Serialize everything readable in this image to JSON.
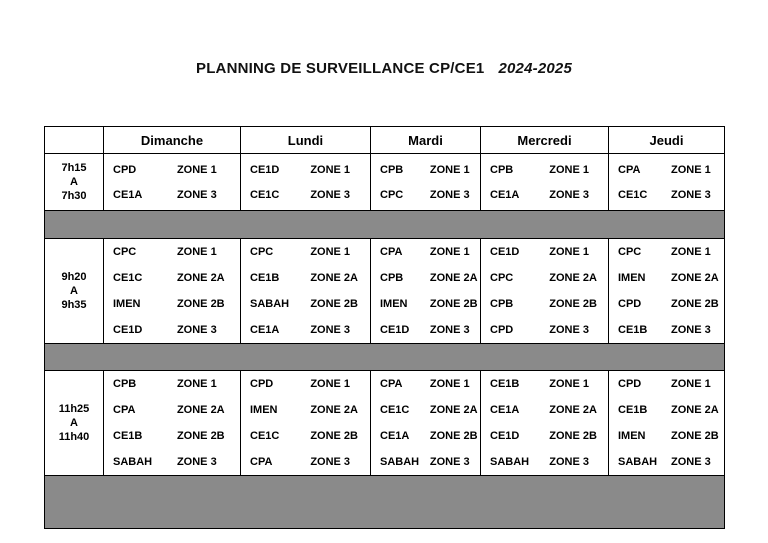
{
  "page": {
    "title": "PLANNING DE SURVEILLANCE CP/CE1",
    "year": "2024-2025"
  },
  "table": {
    "separator_color": "#8a8a8a",
    "days": [
      "Dimanche",
      "Lundi",
      "Mardi",
      "Mercredi",
      "Jeudi"
    ],
    "slots": [
      {
        "time": [
          "7h15",
          "A",
          "7h30"
        ],
        "cells": [
          [
            [
              "CPD",
              "ZONE 1"
            ],
            [
              "CE1A",
              "ZONE 3"
            ]
          ],
          [
            [
              "CE1D",
              "ZONE 1"
            ],
            [
              "CE1C",
              "ZONE 3"
            ]
          ],
          [
            [
              "CPB",
              "ZONE 1"
            ],
            [
              "CPC",
              "ZONE 3"
            ]
          ],
          [
            [
              "CPB",
              "ZONE 1"
            ],
            [
              "CE1A",
              "ZONE 3"
            ]
          ],
          [
            [
              "CPA",
              "ZONE 1"
            ],
            [
              "CE1C",
              "ZONE 3"
            ]
          ]
        ]
      },
      {
        "time": [
          "9h20",
          "A",
          "9h35"
        ],
        "cells": [
          [
            [
              "CPC",
              "ZONE 1"
            ],
            [
              "CE1C",
              "ZONE 2A"
            ],
            [
              "IMEN",
              "ZONE 2B"
            ],
            [
              "CE1D",
              "ZONE 3"
            ]
          ],
          [
            [
              "CPC",
              "ZONE 1"
            ],
            [
              "CE1B",
              "ZONE 2A"
            ],
            [
              "SABAH",
              "ZONE 2B"
            ],
            [
              "CE1A",
              "ZONE 3"
            ]
          ],
          [
            [
              "CPA",
              "ZONE 1"
            ],
            [
              "CPB",
              "ZONE 2A"
            ],
            [
              "IMEN",
              "ZONE 2B"
            ],
            [
              "CE1D",
              "ZONE 3"
            ]
          ],
          [
            [
              "CE1D",
              "ZONE 1"
            ],
            [
              "CPC",
              "ZONE 2A"
            ],
            [
              "CPB",
              "ZONE 2B"
            ],
            [
              "CPD",
              "ZONE 3"
            ]
          ],
          [
            [
              "CPC",
              "ZONE 1"
            ],
            [
              "IMEN",
              "ZONE 2A"
            ],
            [
              "CPD",
              "ZONE 2B"
            ],
            [
              "CE1B",
              "ZONE 3"
            ]
          ]
        ]
      },
      {
        "time": [
          "11h25",
          "A",
          "11h40"
        ],
        "cells": [
          [
            [
              "CPB",
              "ZONE 1"
            ],
            [
              "CPA",
              "ZONE 2A"
            ],
            [
              "CE1B",
              "ZONE 2B"
            ],
            [
              "SABAH",
              "ZONE 3"
            ]
          ],
          [
            [
              "CPD",
              "ZONE 1"
            ],
            [
              "IMEN",
              "ZONE 2A"
            ],
            [
              "CE1C",
              "ZONE 2B"
            ],
            [
              "CPA",
              "ZONE 3"
            ]
          ],
          [
            [
              "CPA",
              "ZONE 1"
            ],
            [
              "CE1C",
              "ZONE 2A"
            ],
            [
              "CE1A",
              "ZONE 2B"
            ],
            [
              "SABAH",
              "ZONE 3"
            ]
          ],
          [
            [
              "CE1B",
              "ZONE 1"
            ],
            [
              "CE1A",
              "ZONE 2A"
            ],
            [
              "CE1D",
              "ZONE 2B"
            ],
            [
              "SABAH",
              "ZONE 3"
            ]
          ],
          [
            [
              "CPD",
              "ZONE 1"
            ],
            [
              "CE1B",
              "ZONE 2A"
            ],
            [
              "IMEN",
              "ZONE 2B"
            ],
            [
              "SABAH",
              "ZONE 3"
            ]
          ]
        ]
      }
    ]
  }
}
